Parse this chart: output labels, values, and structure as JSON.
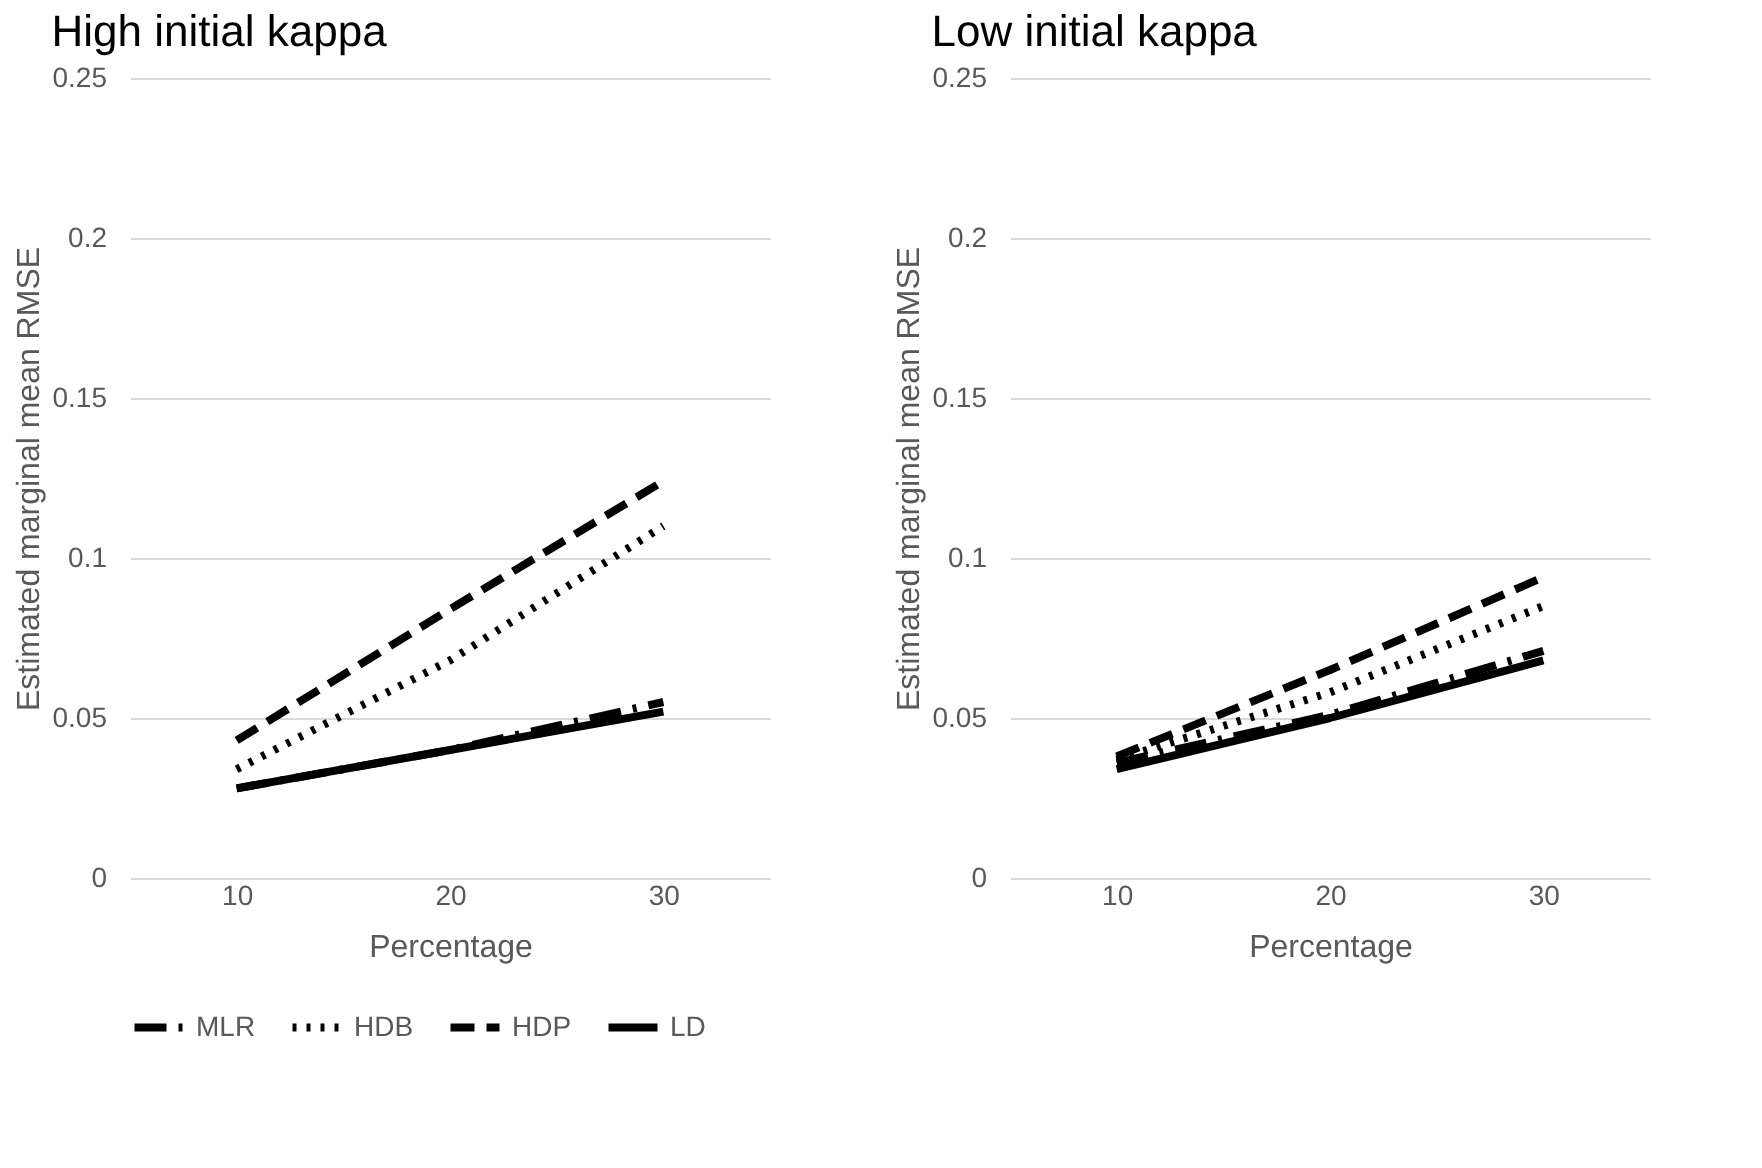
{
  "chart_data": [
    {
      "type": "line",
      "title": "High initial kappa",
      "xlabel": "Percentage",
      "ylabel": "Estimated marginal mean RMSE",
      "categories": [
        "10",
        "20",
        "30"
      ],
      "ylim": [
        0,
        0.25
      ],
      "yticks": [
        0,
        0.05,
        0.1,
        0.15,
        0.2,
        0.25
      ],
      "grid": "y",
      "legend": "bottom",
      "marker": "none",
      "series": [
        {
          "name": "MLR",
          "color": "#000000",
          "line_style": "dashdot",
          "values": [
            0.028,
            0.04,
            0.055
          ]
        },
        {
          "name": "HDB",
          "color": "#000000",
          "line_style": "dotted",
          "values": [
            0.034,
            0.068,
            0.11
          ]
        },
        {
          "name": "HDP",
          "color": "#000000",
          "line_style": "dashed",
          "values": [
            0.043,
            0.084,
            0.124
          ]
        },
        {
          "name": "LD",
          "color": "#000000",
          "line_style": "solid",
          "values": [
            0.028,
            0.04,
            0.052
          ]
        }
      ]
    },
    {
      "type": "line",
      "title": "Low initial kappa",
      "xlabel": "Percentage",
      "ylabel": "Estimated marginal mean RMSE",
      "categories": [
        "10",
        "20",
        "30"
      ],
      "ylim": [
        0,
        0.25
      ],
      "yticks": [
        0,
        0.05,
        0.1,
        0.15,
        0.2,
        0.25
      ],
      "grid": "y",
      "legend": "bottom",
      "marker": "none",
      "series": [
        {
          "name": "MLR",
          "color": "#000000",
          "line_style": "dashdot",
          "values": [
            0.036,
            0.051,
            0.071
          ]
        },
        {
          "name": "HDB",
          "color": "#000000",
          "line_style": "dotted",
          "values": [
            0.037,
            0.058,
            0.085
          ]
        },
        {
          "name": "HDP",
          "color": "#000000",
          "line_style": "dashed",
          "values": [
            0.038,
            0.065,
            0.094
          ]
        },
        {
          "name": "LD",
          "color": "#000000",
          "line_style": "solid",
          "values": [
            0.034,
            0.05,
            0.068
          ]
        }
      ]
    }
  ]
}
